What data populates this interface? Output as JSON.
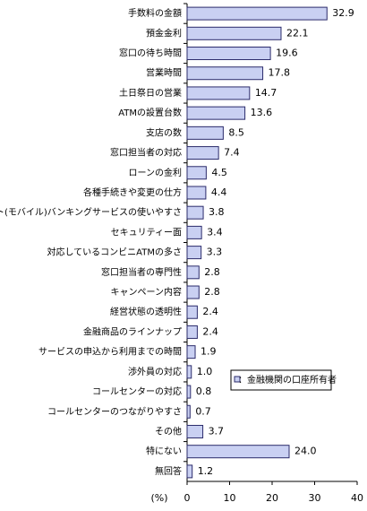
{
  "chart_data": {
    "type": "bar",
    "orientation": "horizontal",
    "categories": [
      "手数料の金額",
      "預金金利",
      "窓口の待ち時間",
      "営業時間",
      "土日祭日の営業",
      "ATMの設置台数",
      "支店の数",
      "窓口担当者の対応",
      "ローンの金利",
      "各種手続きや変更の仕方",
      "ネット(モバイル)バンキングサービスの使いやすさ",
      "セキュリティー面",
      "対応しているコンビニATMの多さ",
      "窓口担当者の専門性",
      "キャンペーン内容",
      "経営状態の透明性",
      "金融商品のラインナップ",
      "サービスの申込から利用までの時間",
      "渉外員の対応",
      "コールセンターの対応",
      "コールセンターのつながりやすさ",
      "その他",
      "特にない",
      "無回答"
    ],
    "series": [
      {
        "name": "：金融機関の口座所有者",
        "color": "#c9d0f2",
        "values": [
          32.9,
          22.1,
          19.6,
          17.8,
          14.7,
          13.6,
          8.5,
          7.4,
          4.5,
          4.4,
          3.8,
          3.4,
          3.3,
          2.8,
          2.8,
          2.4,
          2.4,
          1.9,
          1.0,
          0.8,
          0.7,
          3.7,
          24.0,
          1.2
        ],
        "value_labels": [
          "32.9",
          "22.1",
          "19.6",
          "17.8",
          "14.7",
          "13.6",
          "8.5",
          "7.4",
          "4.5",
          "4.4",
          "3.8",
          "3.4",
          "3.3",
          "2.8",
          "2.8",
          "2.4",
          "2.4",
          "1.9",
          "1.0",
          "0.8",
          "0.7",
          "3.7",
          "24.0",
          "1.2"
        ]
      }
    ],
    "x_label": "(%)",
    "xlim": [
      0,
      40
    ],
    "xticks": [
      0,
      10,
      20,
      30,
      40
    ]
  }
}
